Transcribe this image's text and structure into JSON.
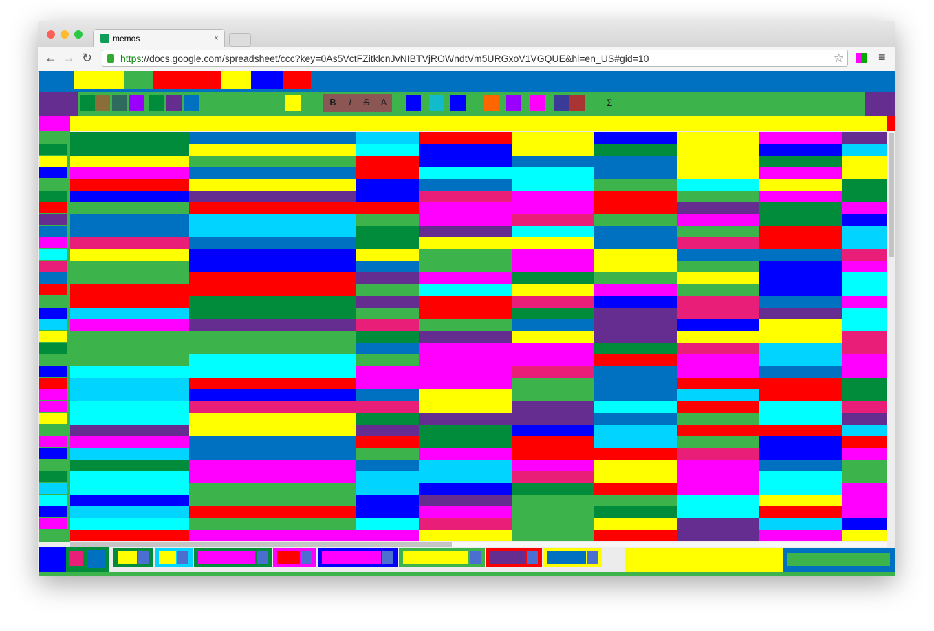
{
  "browser": {
    "tab_title": "memos",
    "tab_close": "×",
    "url_scheme": "https",
    "url_rest": "://docs.google.com/spreadsheet/ccc?key=0As5VctFZitklcnJvNIBTVjROWndtVm5URGxoV1VGQUE&hl=en_US#gid=10",
    "back_icon": "←",
    "forward_icon": "→",
    "reload_icon": "↻",
    "star_icon": "☆",
    "menu_icon": "≡"
  },
  "toolbar": {
    "bold": "B",
    "italic": "I",
    "strike": "S",
    "text_color": "A",
    "sum": "Σ"
  },
  "palette": [
    "#f00",
    "#ff0",
    "#00f",
    "#0ff",
    "#f0f",
    "#3cb44b",
    "#008c3a",
    "#0070c0",
    "#00d4ff",
    "#e91e78",
    "#662d91",
    "#ff00ff"
  ]
}
